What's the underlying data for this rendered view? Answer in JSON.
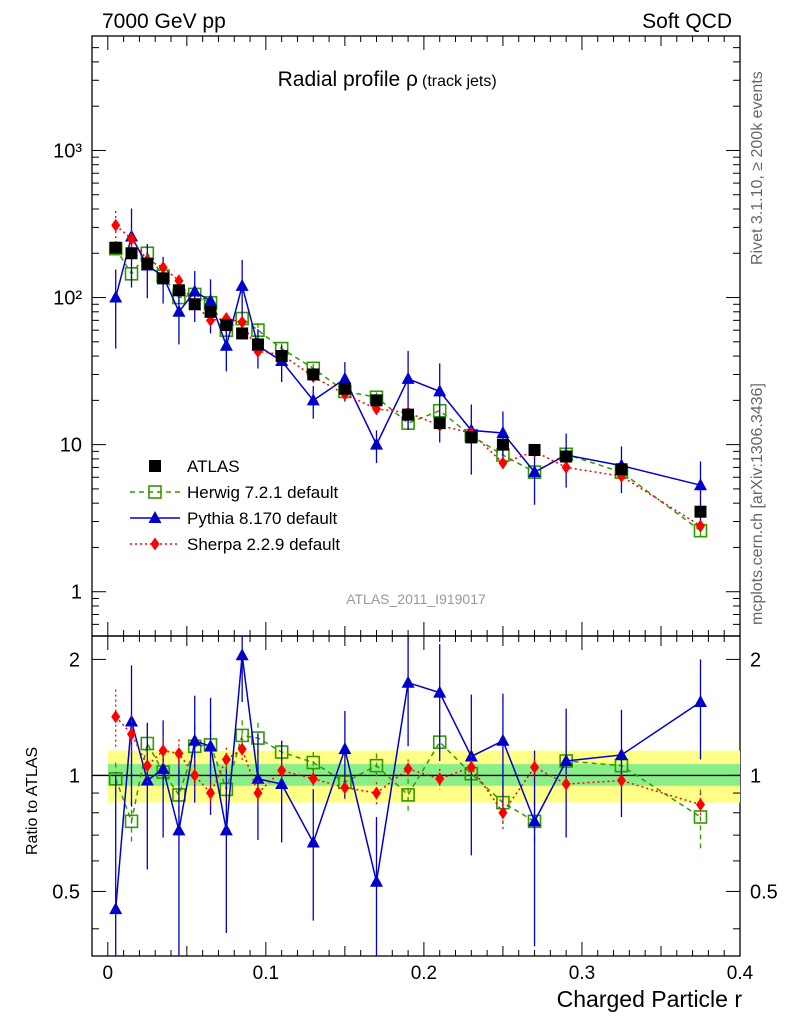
{
  "header": {
    "left": "7000 GeV pp",
    "right": "Soft QCD"
  },
  "side": {
    "rivet": "Rivet 3.1.10, ≥ 200k events",
    "mcplots": "mcplots.cern.ch [arXiv:1306.3436]"
  },
  "chart_data": {
    "type": "scatter",
    "title": "Radial profile ρ",
    "title_suffix": "(track jets)",
    "analysis": "ATLAS_2011_I919017",
    "xlabel": "Charged Particle r",
    "ylabel_ratio": "Ratio to ATLAS",
    "xlim": [
      -0.01,
      0.4
    ],
    "ylim_main": [
      0.5,
      6000
    ],
    "yscale_main": "log",
    "ylim_ratio": [
      0.34,
      2.3
    ],
    "yscale_ratio": "log",
    "x_ticks": [
      "0",
      "0.1",
      "0.2",
      "0.3",
      "0.4"
    ],
    "x_tick_values": [
      0,
      0.1,
      0.2,
      0.3,
      0.4
    ],
    "y_ticks_main": [
      "1",
      "10",
      "10²",
      "10³"
    ],
    "y_tick_values_main": [
      1,
      10,
      100,
      1000
    ],
    "y_ticks_ratio": [
      "0.5",
      "1",
      "2"
    ],
    "y_tick_values_ratio": [
      0.5,
      1,
      2
    ],
    "x": [
      0.005,
      0.015,
      0.025,
      0.035,
      0.045,
      0.055,
      0.065,
      0.075,
      0.085,
      0.095,
      0.11,
      0.13,
      0.15,
      0.17,
      0.19,
      0.21,
      0.23,
      0.25,
      0.27,
      0.29,
      0.325,
      0.375
    ],
    "legend_position": "middle-left",
    "series": [
      {
        "name": "ATLAS",
        "style": "data",
        "color": "#000000",
        "values": [
          218,
          200,
          170,
          135,
          112,
          90,
          80,
          65,
          57,
          48,
          40,
          30,
          24,
          20,
          16,
          14,
          11.2,
          10,
          9.2,
          8.3,
          6.8,
          3.5
        ],
        "ratio": [
          1,
          1,
          1,
          1,
          1,
          1,
          1,
          1,
          1,
          1,
          1,
          1,
          1,
          1,
          1,
          1,
          1,
          1,
          1,
          1,
          1,
          1
        ]
      },
      {
        "name": "Herwig 7.2.1 default",
        "style": "open-square-dashed",
        "color": "#339900",
        "values": [
          215,
          145,
          200,
          140,
          100,
          105,
          92,
          60,
          72,
          60,
          45,
          33,
          23,
          21,
          14,
          17,
          11.5,
          8.5,
          6.5,
          8.6,
          6.5,
          2.6
        ],
        "ratio": [
          0.98,
          0.76,
          1.21,
          1.02,
          0.89,
          1.19,
          1.2,
          0.92,
          1.27,
          1.25,
          1.15,
          1.08,
          0.96,
          1.06,
          0.89,
          1.22,
          1.01,
          0.85,
          0.76,
          1.09,
          1.06,
          0.78
        ],
        "ratio_err": [
          0.1,
          0.1,
          0.15,
          0.1,
          0.14,
          0.16,
          0.16,
          0.14,
          0.12,
          0.12,
          0.08,
          0.07,
          0.08,
          0.08,
          0.09,
          0.1,
          0.1,
          0.1,
          0.1,
          0.1,
          0.1,
          0.14
        ]
      },
      {
        "name": "Pythia 8.170 default",
        "style": "filled-triangle-solid",
        "color": "#0000cc",
        "values": [
          100,
          260,
          165,
          140,
          80,
          110,
          95,
          47,
          120,
          47,
          37,
          20,
          28,
          10,
          28,
          23,
          12.5,
          12,
          6.5,
          8.5,
          7.2,
          5.3
        ],
        "ratio": [
          0.45,
          1.38,
          0.97,
          1.04,
          0.72,
          1.23,
          1.19,
          0.72,
          2.05,
          0.98,
          0.95,
          0.67,
          1.17,
          0.53,
          1.74,
          1.64,
          1.12,
          1.23,
          0.76,
          1.09,
          1.13,
          1.55
        ],
        "ratio_err": [
          0.55,
          0.55,
          0.4,
          0.35,
          0.4,
          0.38,
          0.4,
          0.33,
          0.5,
          0.3,
          0.28,
          0.25,
          0.3,
          0.25,
          0.55,
          0.55,
          0.5,
          0.4,
          0.4,
          0.4,
          0.35,
          0.45
        ]
      },
      {
        "name": "Sherpa 2.2.9 default",
        "style": "filled-diamond-dotted",
        "color": "#ff0000",
        "values": [
          310,
          250,
          180,
          160,
          130,
          90,
          70,
          72,
          68,
          43,
          41,
          29,
          22,
          17.5,
          16.5,
          13.5,
          12,
          7.5,
          9,
          7,
          6.1,
          2.8
        ],
        "ratio": [
          1.42,
          1.28,
          1.06,
          1.16,
          1.14,
          1.0,
          0.9,
          1.1,
          1.17,
          0.9,
          1.03,
          0.98,
          0.93,
          0.9,
          1.04,
          0.98,
          1.05,
          0.8,
          1.05,
          0.95,
          0.97,
          0.84
        ],
        "ratio_err": [
          0.25,
          0.15,
          0.1,
          0.1,
          0.1,
          0.08,
          0.08,
          0.08,
          0.08,
          0.07,
          0.06,
          0.06,
          0.06,
          0.06,
          0.06,
          0.06,
          0.08,
          0.08,
          0.08,
          0.06,
          0.06,
          0.06
        ]
      }
    ]
  }
}
